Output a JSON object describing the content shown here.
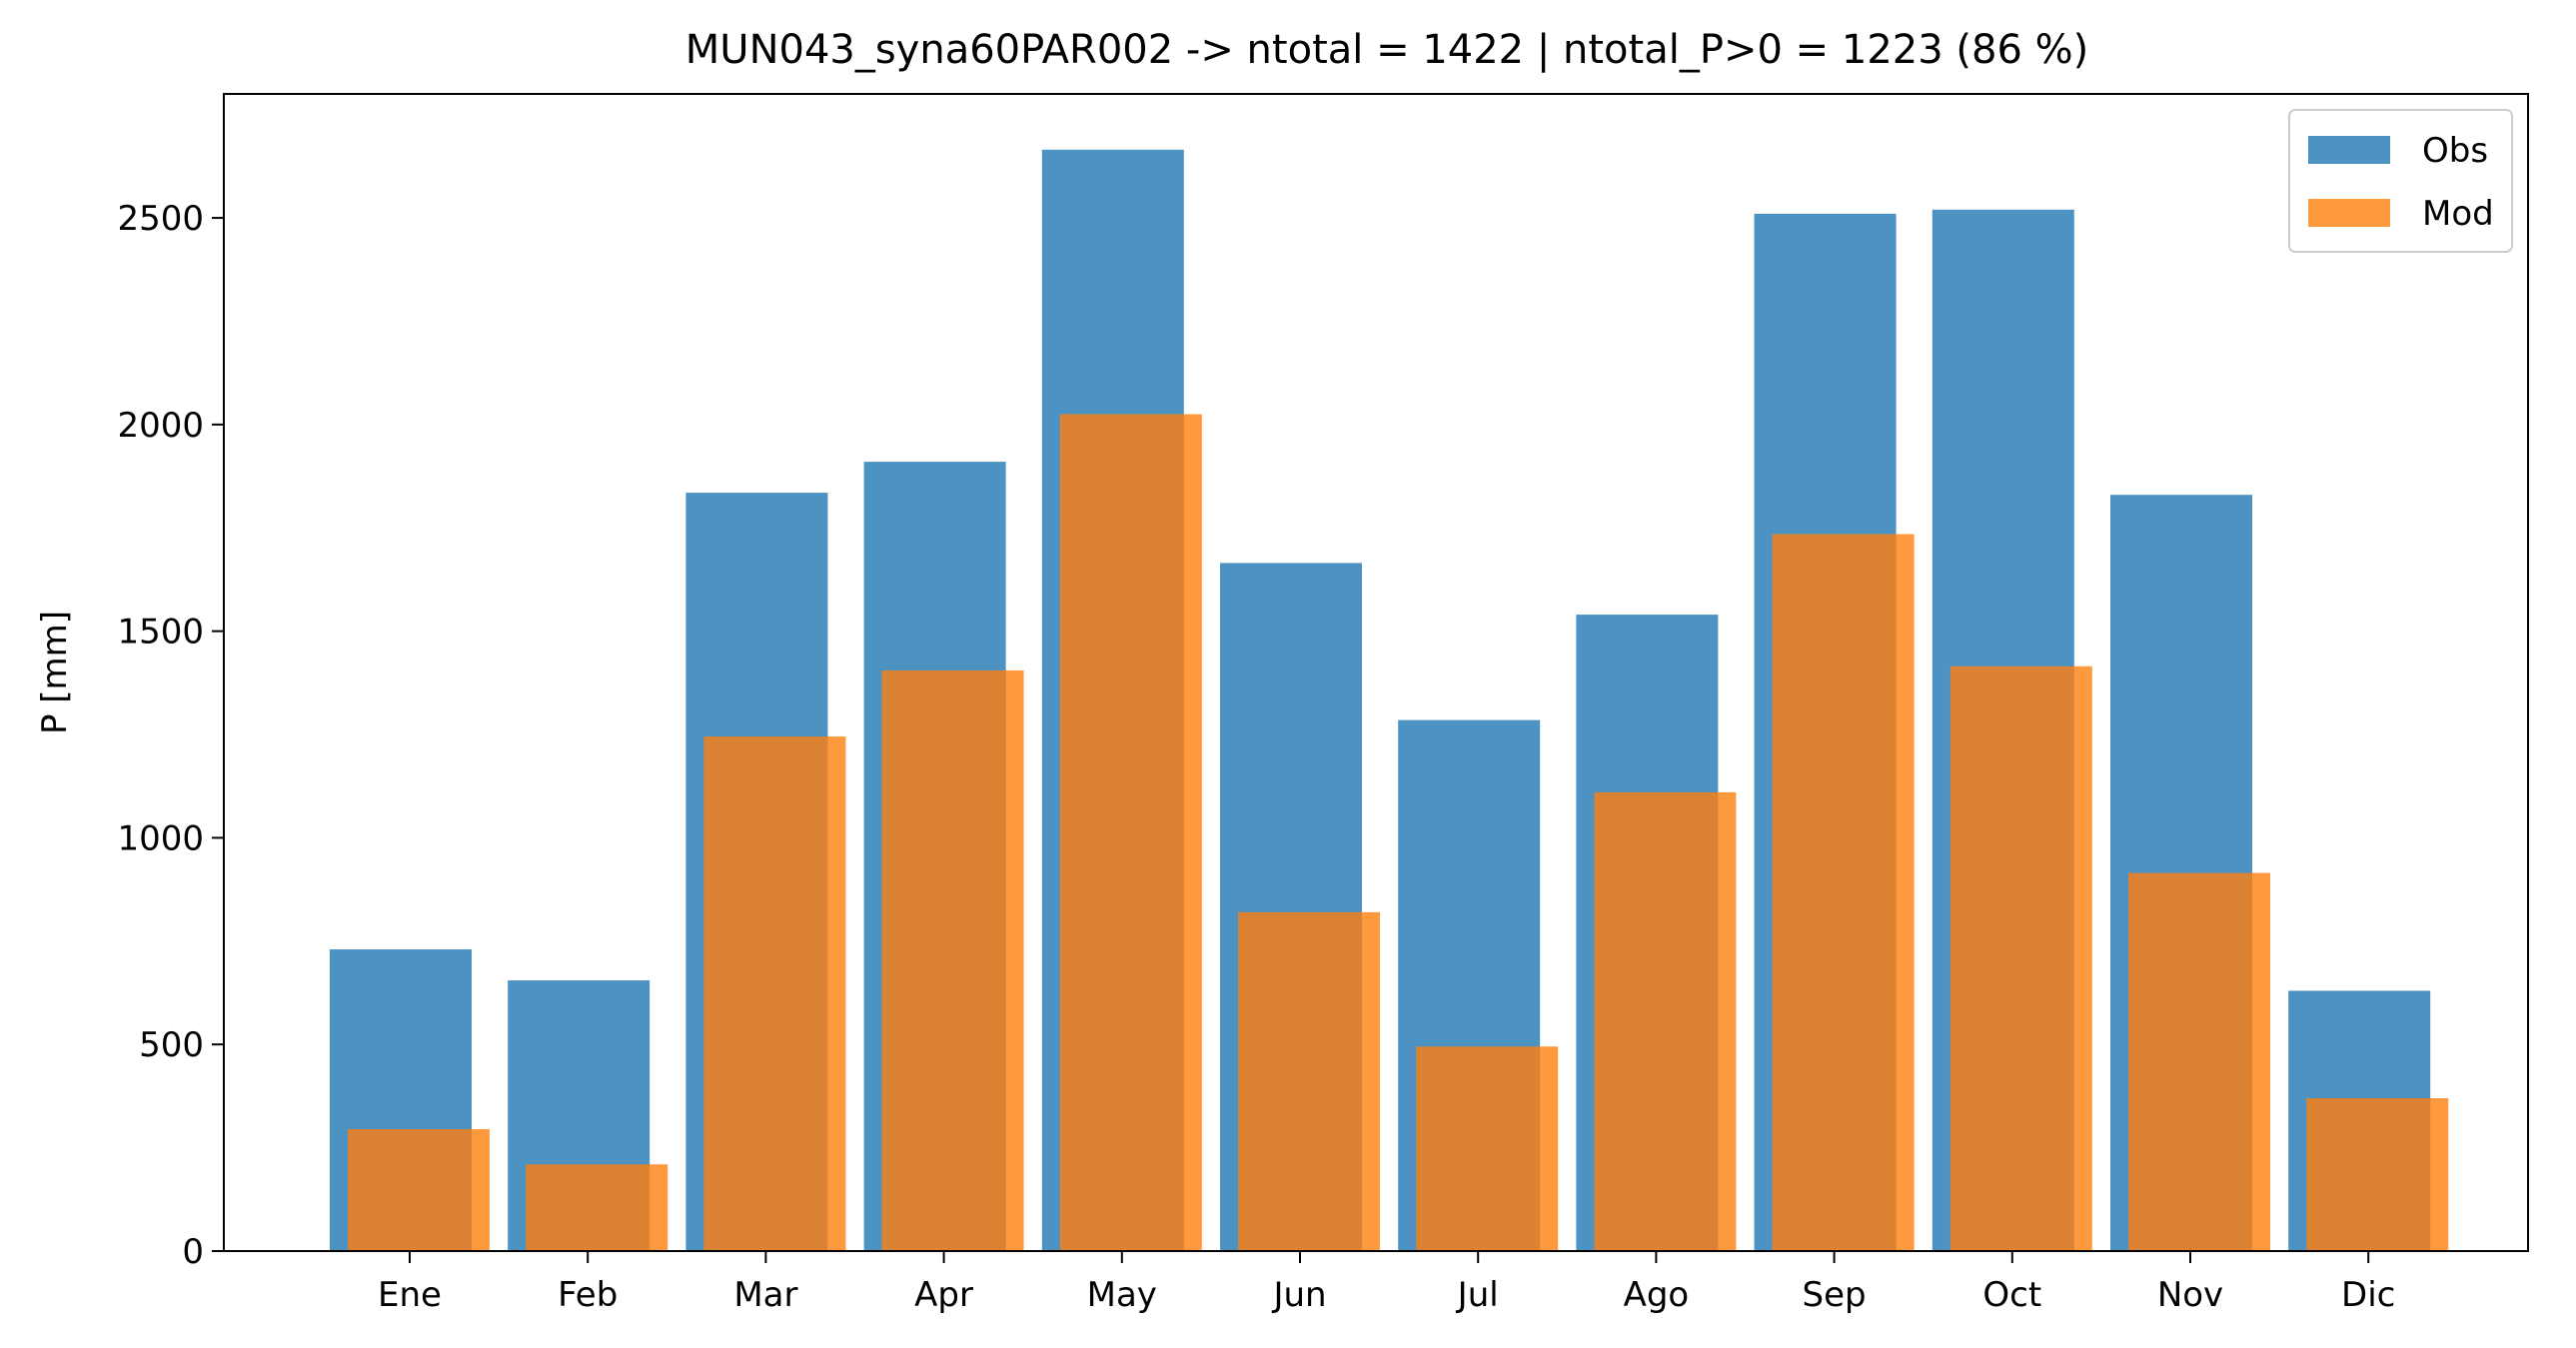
{
  "chart_data": {
    "type": "bar",
    "title": "MUN043_syna60PAR002 -> ntotal = 1422 | ntotal_P>0 = 1223 (86 %)",
    "xlabel": "",
    "ylabel": "P [mm]",
    "ylim": [
      0,
      2800
    ],
    "yticks": [
      "0",
      "500",
      "1000",
      "1500",
      "2000",
      "2500"
    ],
    "grid": false,
    "legend_position": "top-right",
    "categories": [
      "Ene",
      "Feb",
      "Mar",
      "Apr",
      "May",
      "Jun",
      "Jul",
      "Ago",
      "Sep",
      "Oct",
      "Nov",
      "Dic"
    ],
    "series": [
      {
        "name": "Obs",
        "color": "#1f77b4",
        "values": [
          730,
          655,
          1835,
          1910,
          2665,
          1665,
          1285,
          1540,
          2510,
          2520,
          1830,
          630
        ]
      },
      {
        "name": "Mod",
        "color": "#ff7f0e",
        "values": [
          295,
          210,
          1245,
          1405,
          2025,
          820,
          495,
          1110,
          1735,
          1415,
          915,
          370
        ]
      }
    ]
  }
}
